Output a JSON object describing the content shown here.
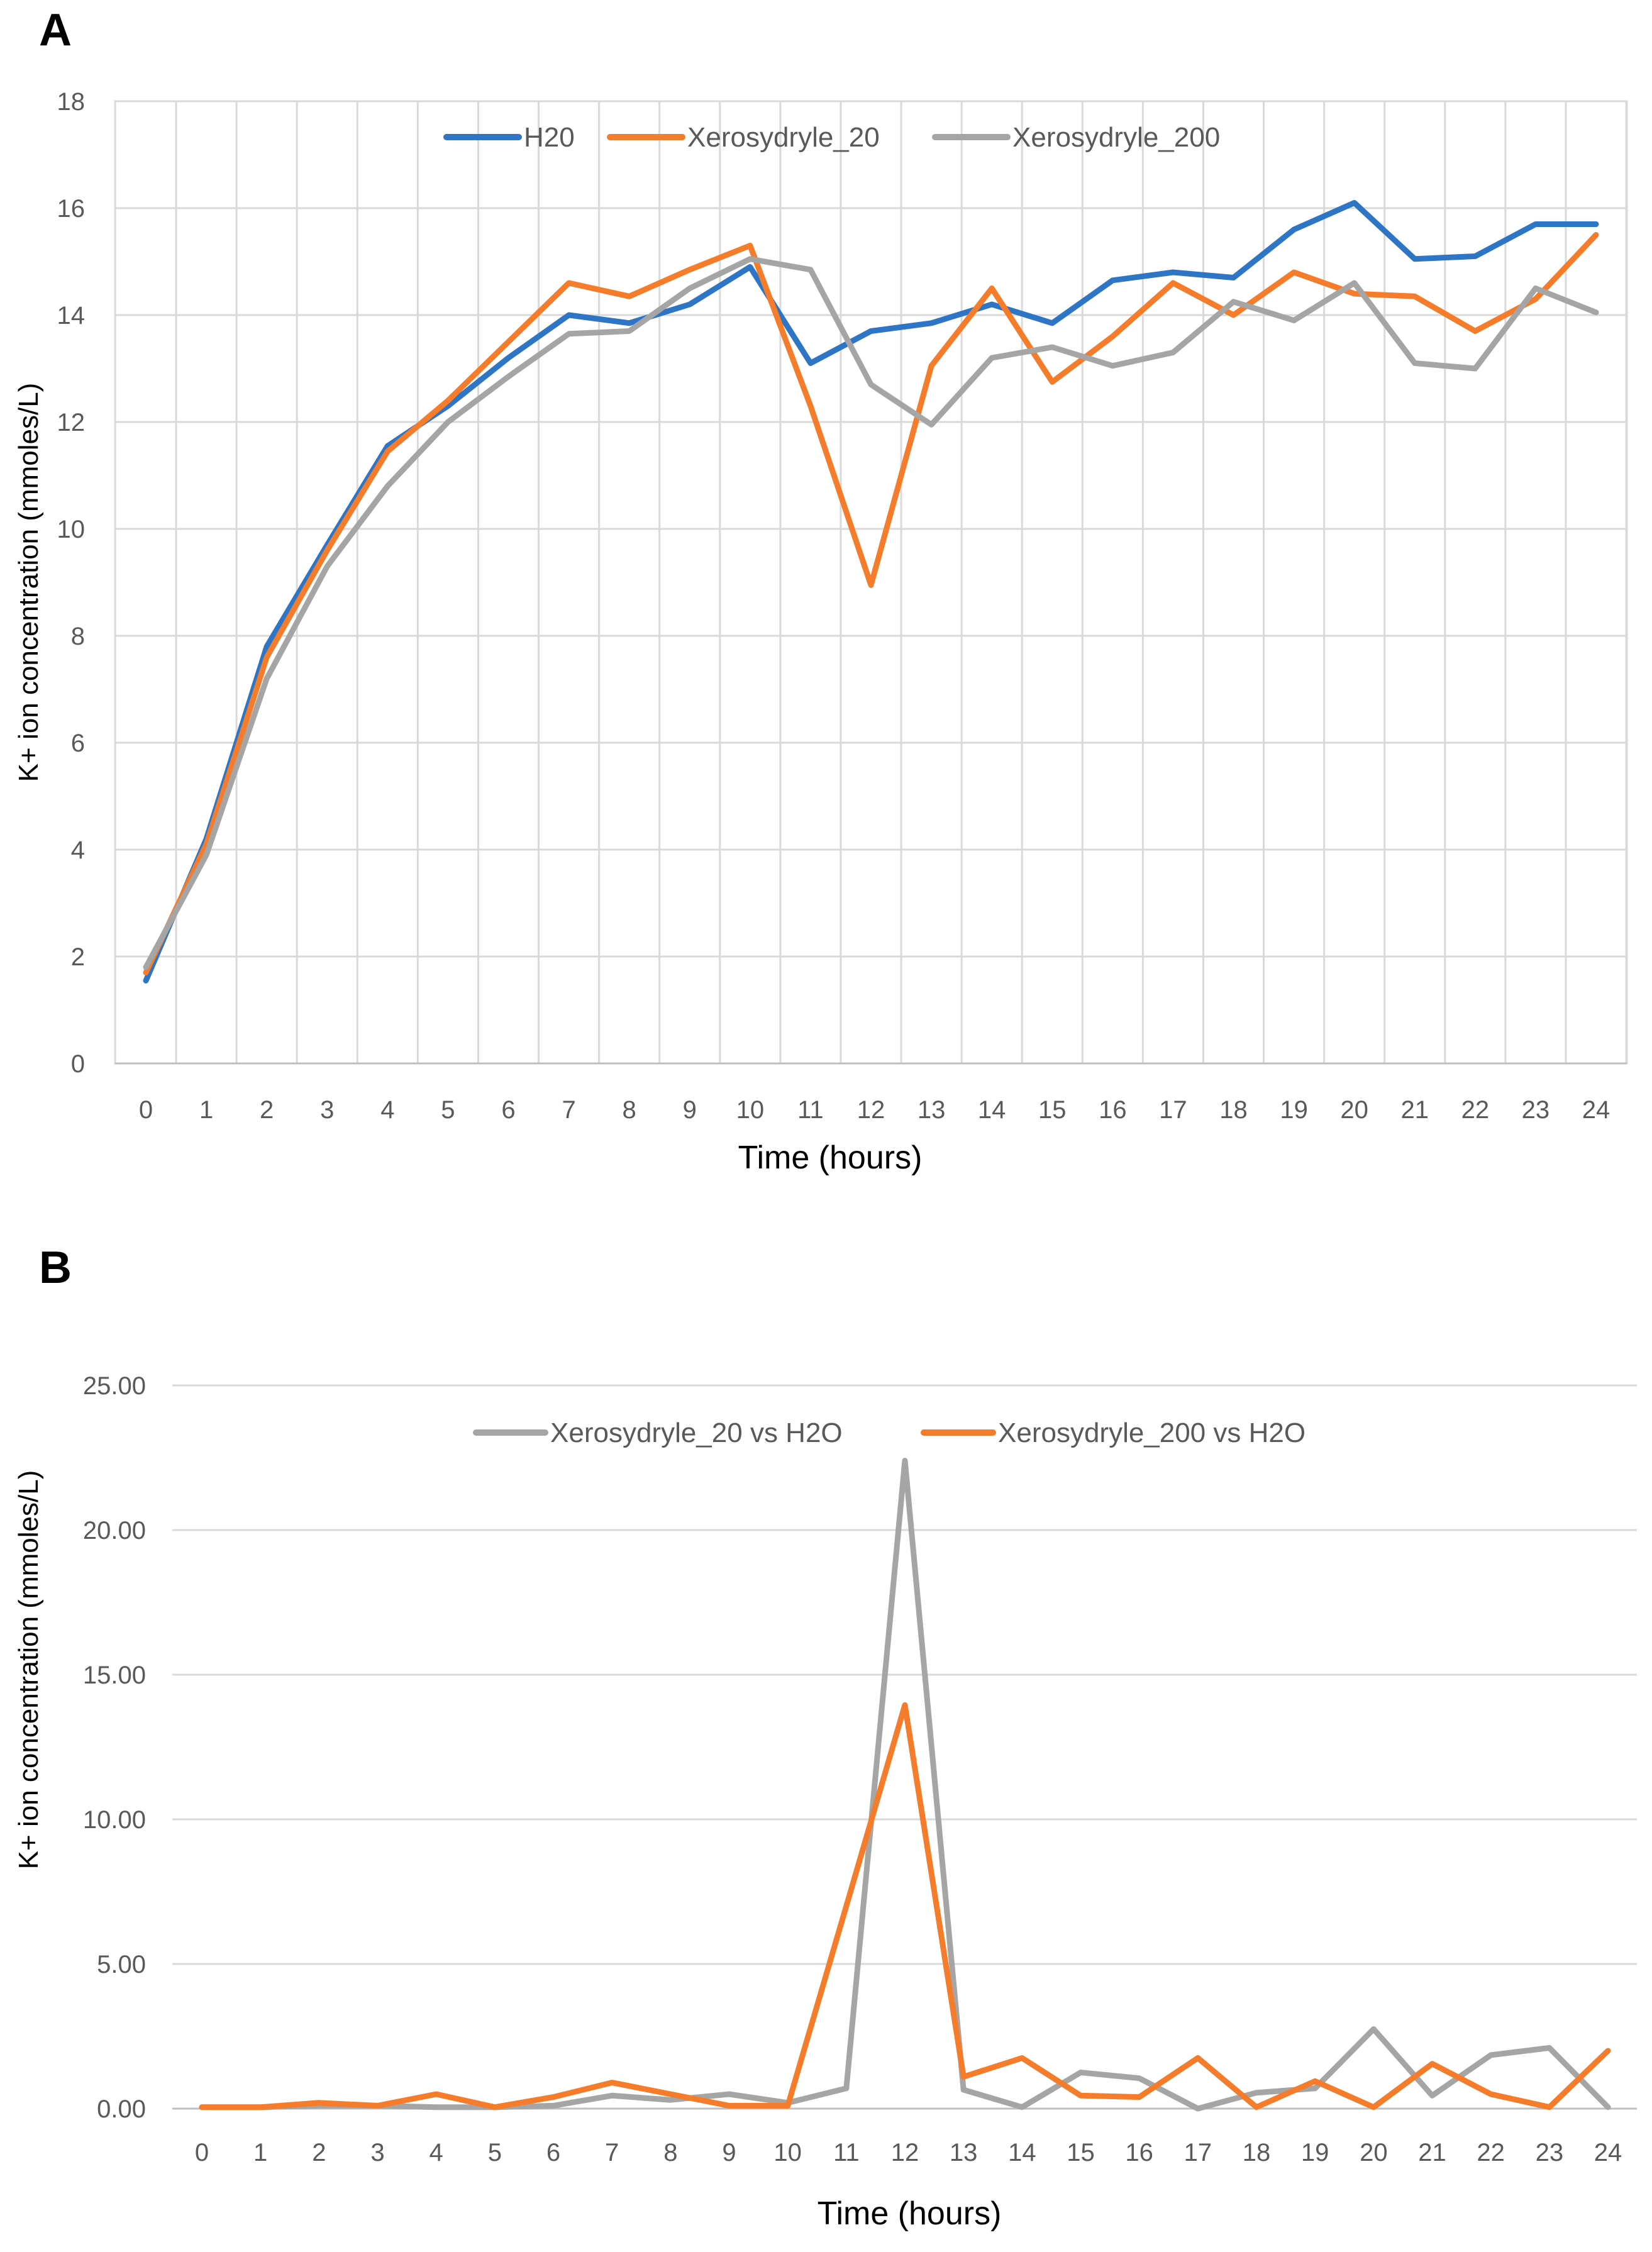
{
  "chart_data": [
    {
      "panel_label": "A",
      "type": "line",
      "xlabel": "Time (hours)",
      "ylabel": "K+ ion concentration (mmoles/L)",
      "x": [
        0,
        1,
        2,
        3,
        4,
        5,
        6,
        7,
        8,
        9,
        10,
        11,
        12,
        13,
        14,
        15,
        16,
        17,
        18,
        19,
        20,
        21,
        22,
        23,
        24
      ],
      "ylim": [
        0,
        18
      ],
      "yticks": [
        0,
        2,
        4,
        6,
        8,
        10,
        12,
        14,
        16,
        18
      ],
      "ytick_labels": [
        "0",
        "2",
        "4",
        "6",
        "8",
        "10",
        "12",
        "14",
        "16",
        "18"
      ],
      "grid": "vertical and horizontal",
      "legend_position": "top-center",
      "series": [
        {
          "name": "H20",
          "color": "#2e75c6",
          "values": [
            1.55,
            4.2,
            7.8,
            9.7,
            11.55,
            12.3,
            13.2,
            14.0,
            13.85,
            14.2,
            14.9,
            13.1,
            13.7,
            13.85,
            14.2,
            13.85,
            14.65,
            14.8,
            14.7,
            15.6,
            16.1,
            15.05,
            15.1,
            15.7,
            15.7
          ]
        },
        {
          "name": "Xerosydryle_20",
          "color": "#f47c2a",
          "values": [
            1.7,
            4.1,
            7.6,
            9.6,
            11.45,
            12.4,
            13.5,
            14.6,
            14.35,
            14.85,
            15.3,
            12.3,
            8.95,
            13.05,
            14.5,
            12.75,
            13.6,
            14.6,
            14.0,
            14.8,
            14.4,
            14.35,
            13.7,
            14.3,
            15.5
          ]
        },
        {
          "name": "Xerosydryle_200",
          "color": "#a5a5a5",
          "values": [
            1.8,
            3.9,
            7.2,
            9.3,
            10.8,
            12.0,
            12.85,
            13.65,
            13.7,
            14.5,
            15.05,
            14.85,
            12.7,
            11.95,
            13.2,
            13.4,
            13.05,
            13.3,
            14.25,
            13.9,
            14.6,
            13.1,
            13.0,
            14.5,
            14.05
          ]
        }
      ]
    },
    {
      "panel_label": "B",
      "type": "line",
      "xlabel": "Time (hours)",
      "ylabel": "K+ ion concentration (mmoles/L)",
      "x": [
        0,
        1,
        2,
        3,
        4,
        5,
        6,
        7,
        8,
        9,
        10,
        11,
        12,
        13,
        14,
        15,
        16,
        17,
        18,
        19,
        20,
        21,
        22,
        23,
        24
      ],
      "ylim": [
        0,
        25
      ],
      "yticks": [
        0,
        5,
        10,
        15,
        20,
        25
      ],
      "ytick_labels": [
        "0.00",
        "5.00",
        "10.00",
        "15.00",
        "20.00",
        "25.00"
      ],
      "grid": "horizontal",
      "legend_position": "top-center",
      "series": [
        {
          "name": "Xerosydryle_20 vs H2O",
          "color": "#a5a5a5",
          "values": [
            0.05,
            0.05,
            0.1,
            0.1,
            0.05,
            0.05,
            0.1,
            0.45,
            0.3,
            0.5,
            0.2,
            0.7,
            22.4,
            0.65,
            0.05,
            1.25,
            1.05,
            0.0,
            0.55,
            0.7,
            2.75,
            0.45,
            1.85,
            2.1,
            0.05
          ]
        },
        {
          "name": "Xerosydryle_200 vs H2O",
          "color": "#f47c2a",
          "values": [
            0.05,
            0.05,
            0.2,
            0.1,
            0.5,
            0.05,
            0.4,
            0.9,
            0.5,
            0.1,
            0.1,
            7.0,
            13.95,
            1.1,
            1.75,
            0.45,
            0.4,
            1.75,
            0.05,
            0.95,
            0.05,
            1.55,
            0.5,
            0.05,
            2.0
          ]
        }
      ]
    }
  ]
}
